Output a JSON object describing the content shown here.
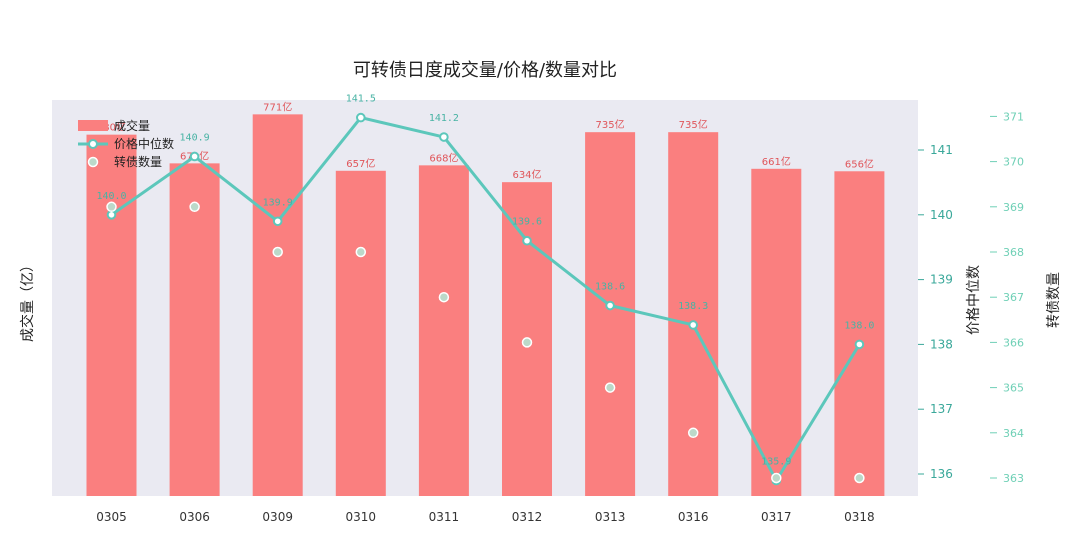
{
  "chart_data": {
    "type": "bar",
    "title": "可转债日度成交量/价格/数量对比",
    "categories": [
      "0305",
      "0306",
      "0309",
      "0310",
      "0311",
      "0312",
      "0313",
      "0316",
      "0317",
      "0318"
    ],
    "series": [
      {
        "name": "成交量",
        "type": "bar",
        "axis": "left",
        "values": [
          730,
          672,
          771,
          657,
          668,
          634,
          735,
          735,
          661,
          656
        ],
        "labels": [
          "730亿",
          "672亿",
          "771亿",
          "657亿",
          "668亿",
          "634亿",
          "735亿",
          "735亿",
          "661亿",
          "656亿"
        ],
        "color": "#fa7f7f"
      },
      {
        "name": "价格中位数",
        "type": "line",
        "axis": "middle",
        "values": [
          140.0,
          140.9,
          139.9,
          141.5,
          141.2,
          139.6,
          138.6,
          138.3,
          135.9,
          138.0
        ],
        "labels": [
          "140.0",
          "140.9",
          "139.9",
          "141.5",
          "141.2",
          "139.6",
          "138.6",
          "138.3",
          "135.9",
          "138.0"
        ],
        "color": "#5cc7bb"
      },
      {
        "name": "转债数量",
        "type": "scatter",
        "axis": "right",
        "values": [
          369,
          369,
          368,
          368,
          367,
          366,
          365,
          364,
          363,
          363
        ],
        "color": "#bcd9c9"
      }
    ],
    "ylabel": "成交量（亿）",
    "y2label": "价格中位数",
    "y3label": "转债数量",
    "y2ticks": [
      "136",
      "137",
      "138",
      "139",
      "140",
      "141"
    ],
    "y3ticks": [
      "363",
      "364",
      "365",
      "366",
      "367",
      "368",
      "369",
      "370",
      "371"
    ],
    "ylim": [
      0,
      800
    ],
    "y2lim": [
      135.6,
      141.6
    ],
    "y3lim": [
      362.6,
      371.2
    ],
    "grid": false,
    "legend": "top-left"
  }
}
